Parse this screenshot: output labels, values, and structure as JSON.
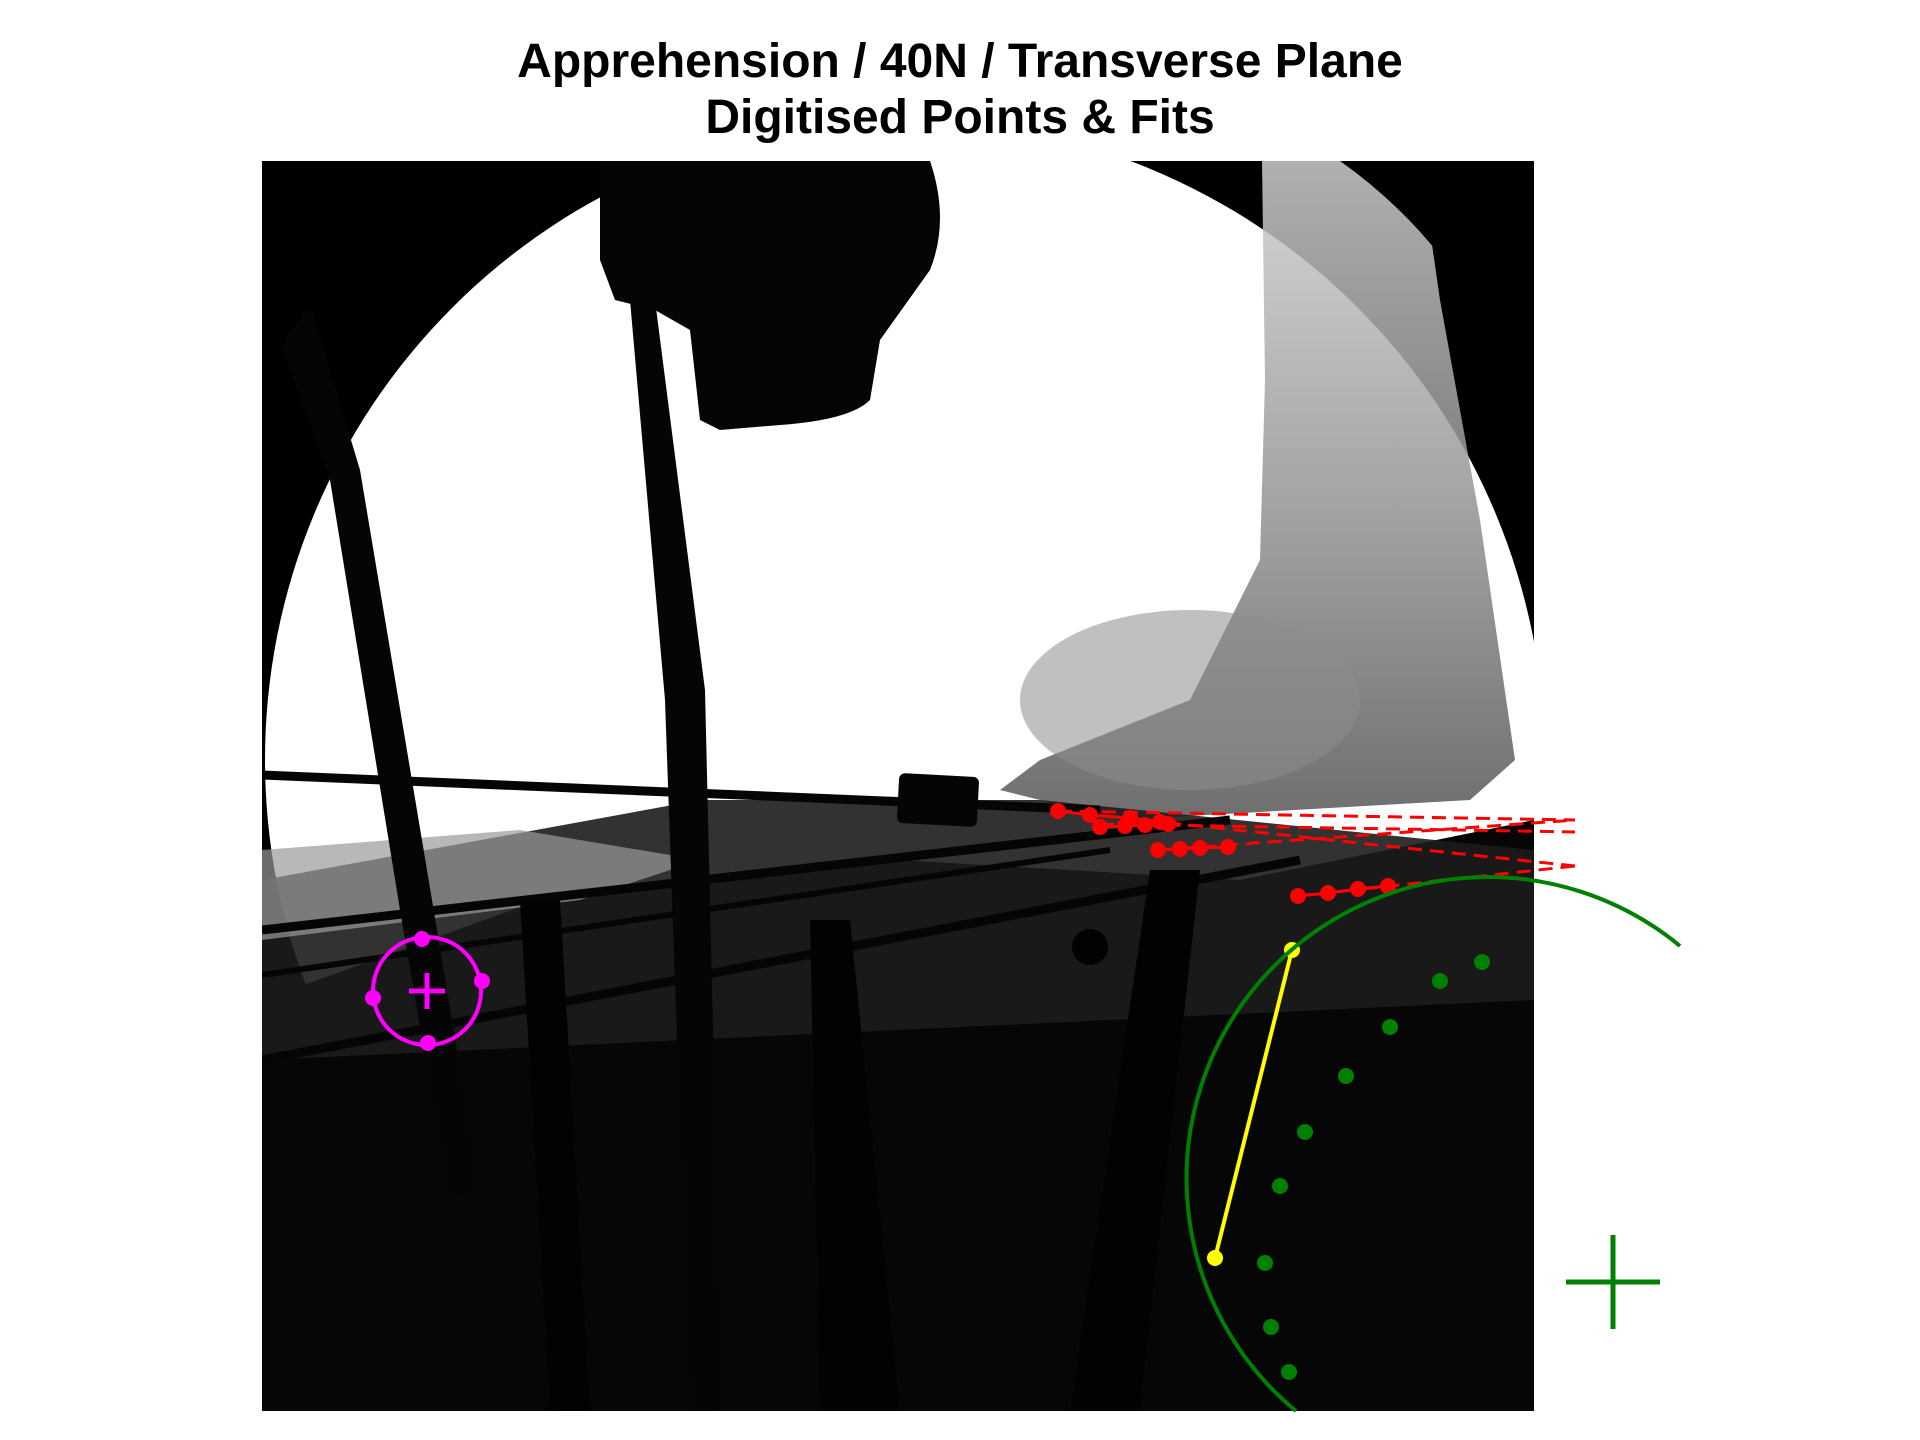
{
  "title": {
    "line1": "Apprehension / 40N / Transverse Plane",
    "line2": "Digitised Points & Fits"
  },
  "image": {
    "description_free": true
  },
  "overlay_colors": {
    "magenta_fit": "#ff00ff",
    "red_points": "#ff0000",
    "yellow_line": "#ffff00",
    "green_fit": "#008000"
  }
}
